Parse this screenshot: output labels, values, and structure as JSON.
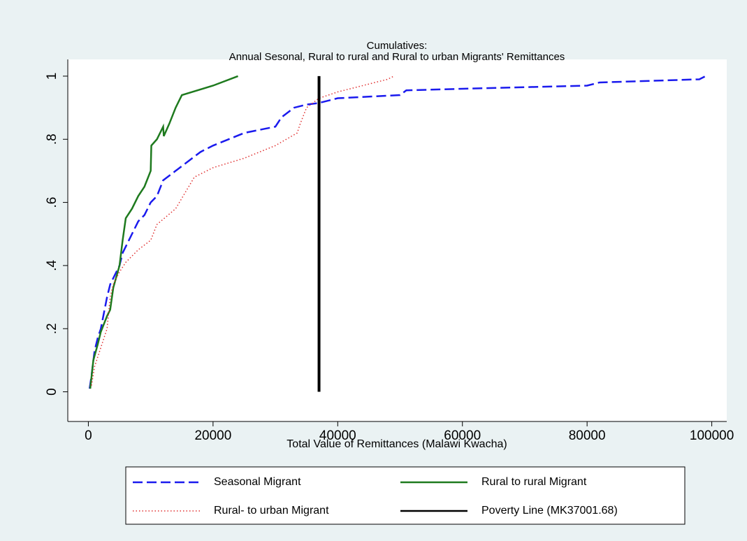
{
  "chart_data": {
    "type": "line",
    "title": "Cumulatives:",
    "subtitle": "Annual Sesonal, Rural to rural and Rural to urban Migrants' Remittances",
    "x_label": "Total Value of Remittances (Malawi Kwacha)",
    "xlim": [
      -3300,
      102400
    ],
    "ylim": [
      -0.094,
      1.053
    ],
    "xticks": [
      0,
      20000,
      40000,
      60000,
      80000,
      100000
    ],
    "yticks": [
      0,
      {
        "value": 0.2,
        "label": ".2"
      },
      {
        "value": 0.4,
        "label": ".4"
      },
      {
        "value": 0.6,
        "label": ".6"
      },
      {
        "value": 0.8,
        "label": ".8"
      },
      1
    ],
    "series": [
      {
        "name": "Seasonal Migrant",
        "color": "#1a1aee",
        "style": "dash",
        "x": [
          200,
          500,
          1000,
          1500,
          2000,
          2500,
          3000,
          3500,
          4000,
          5000,
          5500,
          6000,
          7000,
          8000,
          9000,
          10000,
          11000,
          12000,
          14000,
          16000,
          18000,
          20000,
          25000,
          30000,
          31000,
          33000,
          35000,
          37000,
          40000,
          50000,
          51000,
          60000,
          80000,
          82000,
          98000,
          99000
        ],
        "values": [
          0.01,
          0.05,
          0.13,
          0.17,
          0.2,
          0.25,
          0.3,
          0.34,
          0.36,
          0.4,
          0.44,
          0.46,
          0.5,
          0.54,
          0.56,
          0.6,
          0.62,
          0.67,
          0.7,
          0.73,
          0.76,
          0.78,
          0.82,
          0.84,
          0.87,
          0.9,
          0.91,
          0.915,
          0.93,
          0.94,
          0.955,
          0.96,
          0.97,
          0.98,
          0.99,
          1
        ]
      },
      {
        "name": "Rural to rural Migrant",
        "color": "#1e7a1e",
        "style": "solid",
        "x": [
          300,
          800,
          1500,
          2000,
          3000,
          3500,
          4000,
          5000,
          5500,
          6000,
          7000,
          8000,
          9000,
          10000,
          10100,
          11000,
          12000,
          12100,
          13000,
          14000,
          15000,
          20000,
          24000
        ],
        "values": [
          0.01,
          0.1,
          0.15,
          0.19,
          0.24,
          0.26,
          0.33,
          0.4,
          0.48,
          0.55,
          0.58,
          0.62,
          0.65,
          0.7,
          0.78,
          0.8,
          0.84,
          0.81,
          0.85,
          0.9,
          0.94,
          0.97,
          1
        ]
      },
      {
        "name": "Rural- to urban Migrant",
        "color": "#e03030",
        "style": "dot",
        "x": [
          500,
          1000,
          2000,
          3000,
          3500,
          4000,
          5000,
          6000,
          8000,
          10000,
          11000,
          14000,
          17000,
          20000,
          25000,
          30000,
          33500,
          34000,
          35000,
          37000,
          40000,
          48000,
          49000
        ],
        "values": [
          0.02,
          0.08,
          0.14,
          0.2,
          0.3,
          0.34,
          0.38,
          0.41,
          0.45,
          0.48,
          0.53,
          0.58,
          0.68,
          0.71,
          0.74,
          0.78,
          0.82,
          0.85,
          0.9,
          0.93,
          0.95,
          0.99,
          1
        ]
      },
      {
        "name": "Poverty Line (MK37001.68)",
        "color": "#000000",
        "style": "thick",
        "x": [
          37001.68,
          37001.68
        ],
        "values": [
          0,
          1
        ]
      }
    ]
  }
}
